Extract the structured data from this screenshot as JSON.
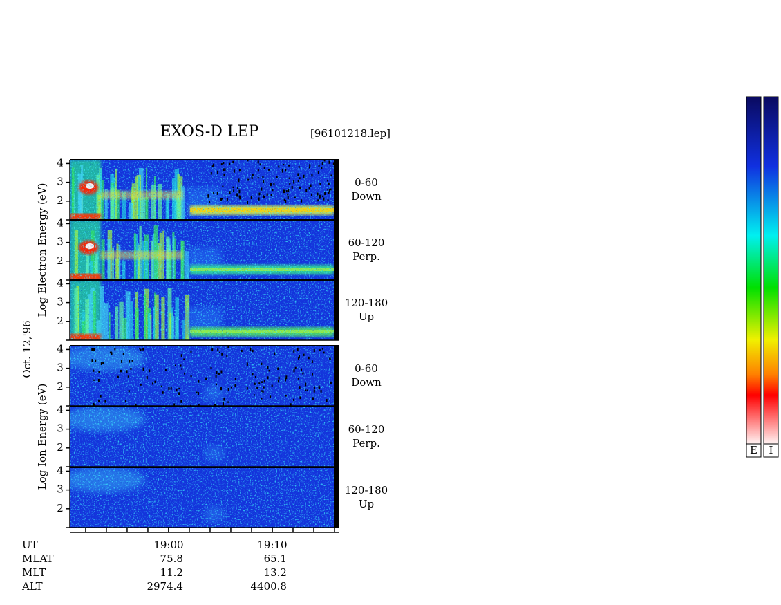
{
  "title": "EXOS-D LEP",
  "file": "[96101218.lep]",
  "date": "Oct. 12,'96",
  "energy_axis": {
    "range": [
      1,
      4.2
    ],
    "ticks": [
      2,
      3,
      4
    ]
  },
  "time_axis": {
    "range": [
      1130.47,
      1156.4
    ],
    "ticks": [
      {
        "value": 1140,
        "label": "19:00"
      },
      {
        "value": 1150,
        "label": "19:10"
      }
    ]
  },
  "groups": [
    {
      "label": "Log Electron Energy (eV)",
      "panels": [
        {
          "angle": "0-60",
          "direction": "Down"
        },
        {
          "angle": "60-120",
          "direction": "Perp."
        },
        {
          "angle": "120-180",
          "direction": "Up"
        }
      ]
    },
    {
      "label": "Log Ion Energy (eV)",
      "panels": [
        {
          "angle": "0-60",
          "direction": "Down"
        },
        {
          "angle": "60-120",
          "direction": "Perp."
        },
        {
          "angle": "120-180",
          "direction": "Up"
        }
      ]
    }
  ],
  "ephemeris": {
    "time_label": "UT",
    "rows": [
      {
        "name": "MLAT",
        "values": [
          "75.8",
          "65.1"
        ]
      },
      {
        "name": "MLT",
        "values": [
          "11.2",
          "13.2"
        ]
      },
      {
        "name": "ALT",
        "values": [
          "2974.4",
          "4400.8"
        ]
      }
    ]
  },
  "colorbars": [
    "E",
    "I"
  ]
}
